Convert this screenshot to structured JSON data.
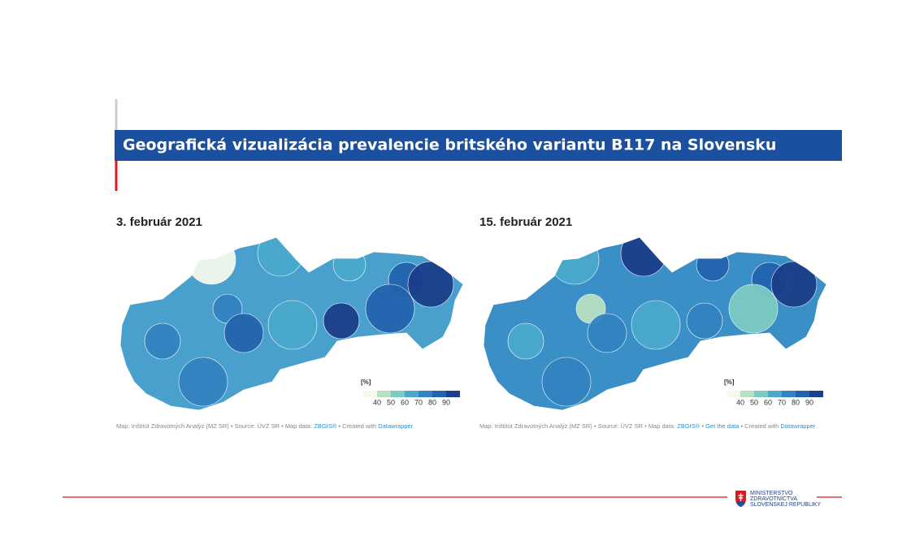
{
  "header": {
    "title": "Geografická vizualizácia prevalencie britského variantu B117 na Slovensku"
  },
  "panels": [
    {
      "date": "3. február 2021",
      "legend": {
        "unit": "[%]",
        "ticks": [
          40,
          50,
          60,
          70,
          80,
          90
        ]
      },
      "credit": [
        {
          "text": "Map: Inštitút Zdravotných Analýz (MZ SR) • Source: ÚVZ SR • Map data: ",
          "link": false
        },
        {
          "text": "ZBGIS®",
          "link": true
        },
        {
          "text": " • Created with ",
          "link": false
        },
        {
          "text": "Datawrapper",
          "link": true
        }
      ]
    },
    {
      "date": "15. február 2021",
      "legend": {
        "unit": "[%]",
        "ticks": [
          40,
          50,
          60,
          70,
          80,
          90
        ]
      },
      "credit": [
        {
          "text": "Map: Inštitút Zdravotných Analýz (MZ SR) • Source: ÚVZ SR • Map data: ",
          "link": false
        },
        {
          "text": "ZBGIS®",
          "link": true
        },
        {
          "text": " • ",
          "link": false
        },
        {
          "text": "Get the data",
          "link": true
        },
        {
          "text": " • Created with ",
          "link": false
        },
        {
          "text": "Datawrapper",
          "link": true
        }
      ]
    }
  ],
  "footer": {
    "logo": [
      "MINISTERSTVO",
      "ZDRAVOTNÍCTVA",
      "SLOVENSKEJ REPUBLIKY"
    ]
  }
}
